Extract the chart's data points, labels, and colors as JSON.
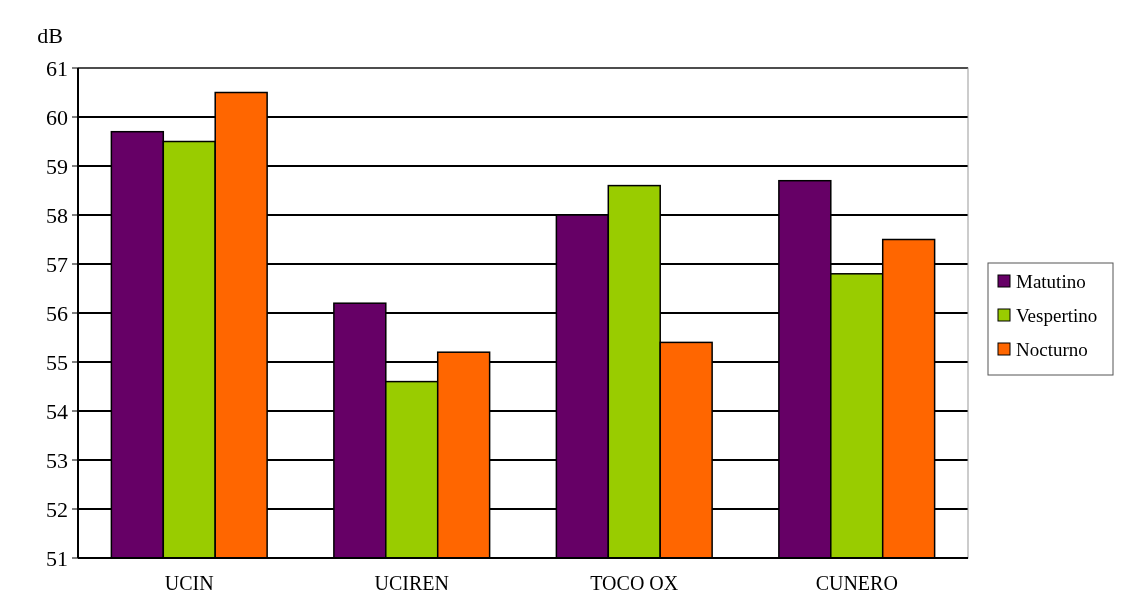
{
  "chart_data": {
    "type": "bar",
    "ylabel": "dB",
    "categories": [
      "UCIN",
      "UCIREN",
      "TOCO OX",
      "CUNERO"
    ],
    "series": [
      {
        "name": "Matutino",
        "color": "#660066",
        "values": [
          59.7,
          56.2,
          58.0,
          58.7
        ]
      },
      {
        "name": "Vespertino",
        "color": "#99cc00",
        "values": [
          59.5,
          54.6,
          58.6,
          56.8
        ]
      },
      {
        "name": "Nocturno",
        "color": "#ff6600",
        "values": [
          60.5,
          55.2,
          55.4,
          57.5
        ]
      }
    ],
    "ylim": [
      51,
      61
    ],
    "yticks": [
      51,
      52,
      53,
      54,
      55,
      56,
      57,
      58,
      59,
      60,
      61
    ],
    "grid": "y",
    "legend": "right"
  }
}
